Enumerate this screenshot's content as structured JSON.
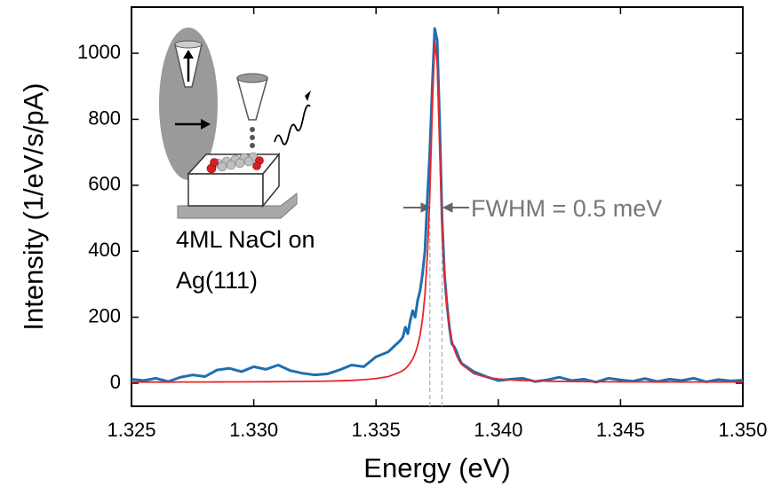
{
  "chart_data": {
    "type": "line",
    "x_label": "Energy (eV)",
    "y_label": "Intensity (1/eV/s/pA)",
    "annotations": [
      "FWHM = 0.5 meV",
      "4ML NaCl on",
      "Ag(111)"
    ],
    "vlines": [
      1.3372,
      1.3377
    ],
    "x": [
      1.325,
      1.3255,
      1.326,
      1.3265,
      1.327,
      1.3275,
      1.328,
      1.3285,
      1.329,
      1.3295,
      1.33,
      1.3305,
      1.331,
      1.3315,
      1.332,
      1.3325,
      1.333,
      1.3335,
      1.334,
      1.3345,
      1.335,
      1.3355,
      1.336,
      1.3361,
      1.3362,
      1.3363,
      1.3364,
      1.3365,
      1.3366,
      1.3367,
      1.3368,
      1.3369,
      1.337,
      1.3371,
      1.3372,
      1.3373,
      1.3374,
      1.3375,
      1.3376,
      1.3377,
      1.3378,
      1.3379,
      1.338,
      1.3381,
      1.3382,
      1.3383,
      1.3384,
      1.3385,
      1.339,
      1.3395,
      1.34,
      1.3405,
      1.341,
      1.3415,
      1.342,
      1.3425,
      1.343,
      1.3435,
      1.344,
      1.3445,
      1.345,
      1.3455,
      1.346,
      1.3465,
      1.347,
      1.3475,
      1.348,
      1.3485,
      1.349,
      1.3495,
      1.35
    ],
    "series": [
      {
        "color": "#1f6fb0",
        "values": [
          12,
          8,
          15,
          5,
          18,
          25,
          20,
          40,
          45,
          35,
          50,
          42,
          55,
          38,
          30,
          25,
          28,
          40,
          55,
          50,
          80,
          95,
          130,
          140,
          170,
          150,
          190,
          220,
          200,
          250,
          280,
          330,
          400,
          560,
          700,
          900,
          1075,
          1040,
          800,
          500,
          330,
          240,
          170,
          120,
          110,
          95,
          75,
          60,
          35,
          20,
          8,
          12,
          15,
          5,
          10,
          18,
          8,
          12,
          3,
          15,
          10,
          6,
          14,
          5,
          12,
          8,
          15,
          4,
          11,
          7,
          9
        ]
      },
      {
        "color": "#e8262b",
        "values": [
          3.4,
          3.5,
          3.5,
          3.5,
          3.6,
          3.7,
          3.7,
          3.8,
          3.9,
          4.0,
          4.2,
          4.4,
          4.6,
          4.9,
          5.2,
          5.7,
          6.3,
          7.2,
          8.5,
          10.6,
          14,
          20,
          34,
          39,
          44,
          52,
          61,
          73,
          90,
          113,
          145,
          193,
          267,
          385,
          569,
          826,
          1033,
          972,
          718,
          485,
          330,
          233,
          172,
          131,
          103,
          83,
          68,
          57,
          29,
          18,
          13,
          10,
          8,
          7,
          6,
          5.5,
          5.1,
          4.8,
          4.5,
          4.3,
          4.1,
          4.0,
          3.9,
          3.8,
          3.8,
          3.7,
          3.7,
          3.6,
          3.6,
          3.6,
          3.5
        ]
      }
    ],
    "xlim": [
      1.325,
      1.35
    ],
    "ylim": [
      -70,
      1140
    ],
    "xticks": [
      1.325,
      {
        "value": 1.33,
        "label": "1.330"
      },
      1.335,
      {
        "value": 1.34,
        "label": "1.340"
      },
      1.345,
      {
        "value": 1.35,
        "label": "1.350"
      }
    ],
    "yticks": [
      0,
      200,
      400,
      600,
      800,
      1000
    ]
  }
}
